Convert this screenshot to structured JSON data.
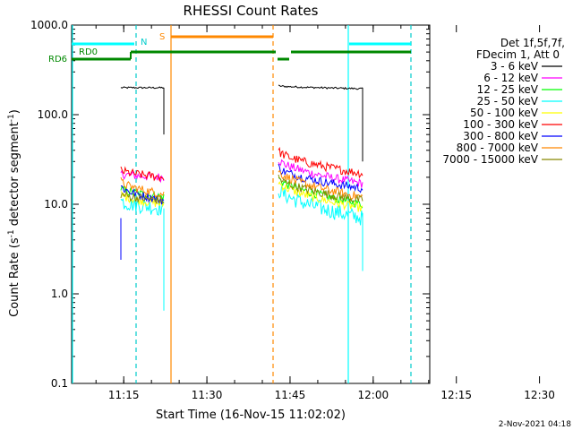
{
  "chart_data": {
    "type": "line",
    "title": "RHESSI Count Rates",
    "xlabel": "Start Time (16-Nov-15 11:02:02)",
    "ylabel_main": "Count Rate (s",
    "ylabel_sup1": "-1",
    "ylabel_mid": " detector segment",
    "ylabel_sup2": "-1",
    "ylabel_end": ")",
    "x_range_min": [
      5.6,
      70.2
    ],
    "y_scale": "log",
    "ylim": [
      0.1,
      1000
    ],
    "x_ticks": [
      {
        "min": 15,
        "label": "11:15"
      },
      {
        "min": 30,
        "label": "11:30"
      },
      {
        "min": 45,
        "label": "11:45"
      },
      {
        "min": 60,
        "label": "12:00"
      },
      {
        "min": 75,
        "label": "12:15"
      },
      {
        "min": 90,
        "label": "12:30"
      }
    ],
    "y_ticks": [
      {
        "value": 0.1,
        "label": "0.1"
      },
      {
        "value": 1,
        "label": "1.0"
      },
      {
        "value": 10,
        "label": "10.0"
      },
      {
        "value": 100,
        "label": "100.0"
      },
      {
        "value": 1000,
        "label": "1000.0"
      }
    ],
    "legend_header": [
      "Det 1f,5f,7f,",
      "FDecim 1, Att 0"
    ],
    "series": [
      {
        "name": "3 - 6 keV",
        "color": "#000000",
        "seg1": [
          200,
          200
        ],
        "seg2": [
          210,
          195
        ]
      },
      {
        "name": "6 - 12 keV",
        "color": "#ff00ff",
        "seg1": [
          22,
          20
        ],
        "seg2": [
          32,
          17
        ]
      },
      {
        "name": "12 - 25 keV",
        "color": "#00ff00",
        "seg1": [
          15,
          12
        ],
        "seg2": [
          20,
          10
        ]
      },
      {
        "name": "25 - 50 keV",
        "color": "#00ffff",
        "seg1": [
          11,
          9
        ],
        "seg2": [
          15,
          7
        ]
      },
      {
        "name": "50 - 100 keV",
        "color": "#ffff00",
        "seg1": [
          13,
          10
        ],
        "seg2": [
          18,
          9
        ]
      },
      {
        "name": "100 - 300 keV",
        "color": "#ff0000",
        "seg1": [
          24,
          20
        ],
        "seg2": [
          40,
          22
        ]
      },
      {
        "name": "300 - 800 keV",
        "color": "#0000ff",
        "seg1": [
          16,
          11
        ],
        "seg2": [
          26,
          15
        ]
      },
      {
        "name": "800 - 7000 keV",
        "color": "#ff8800",
        "seg1": [
          18,
          13
        ],
        "seg2": [
          24,
          12
        ]
      },
      {
        "name": "7000 - 15000 keV",
        "color": "#888800",
        "seg1": [
          13,
          11
        ],
        "seg2": [
          20,
          11
        ]
      }
    ],
    "annotations": {
      "rd0": "RD0",
      "rd6": "RD6",
      "n_label": "N",
      "s_label": "S"
    }
  },
  "footer_timestamp": "2-Nov-2021 04:18"
}
